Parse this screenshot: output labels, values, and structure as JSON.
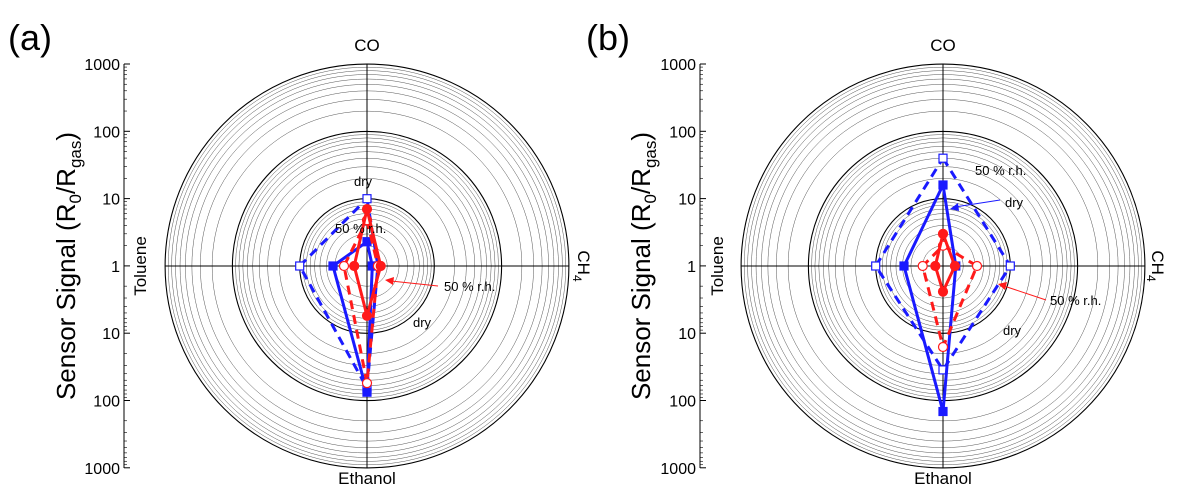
{
  "figure": {
    "colors": {
      "blue": "#1a1aff",
      "red": "#ff1a1a",
      "axis": "#000000",
      "grid": "#555555"
    }
  },
  "chart_data": [
    {
      "panel_label": "(a)",
      "type": "radar",
      "scale": "log",
      "rlim": [
        1,
        1000
      ],
      "radial_ticks": [
        "1000",
        "100",
        "10",
        "1",
        "10",
        "100",
        "1000"
      ],
      "axis_label": {
        "main": "Sensor Signal (R",
        "sub1": "0",
        "mid": "/R",
        "sub2": "gas",
        "end": ")"
      },
      "categories": [
        "CO",
        "CH4",
        "Ethanol",
        "Toluene"
      ],
      "category_labels": {
        "top": "CO",
        "right_main": "CH",
        "right_sub": "4",
        "bottom": "Ethanol",
        "left": "Toluene"
      },
      "series": [
        {
          "color": "blue",
          "style": "dashed",
          "marker": "open-square",
          "values": [
            10,
            1.45,
            65,
            10
          ]
        },
        {
          "color": "blue",
          "style": "solid",
          "marker": "filled-square",
          "values": [
            2.3,
            1.2,
            75,
            3.2
          ]
        },
        {
          "color": "red",
          "style": "dashed",
          "marker": "open-circle",
          "values": [
            4.8,
            1.45,
            55,
            2.2
          ]
        },
        {
          "color": "red",
          "style": "solid",
          "marker": "filled-circle",
          "values": [
            7,
            1.6,
            5.5,
            1.55
          ]
        }
      ],
      "annotations": [
        {
          "text": "dry",
          "color": "blue"
        },
        {
          "text": "50 % r.h.",
          "color": "blue"
        },
        {
          "text": "50 % r.h.",
          "color": "red"
        },
        {
          "text": "dry",
          "color": "red"
        }
      ]
    },
    {
      "panel_label": "(b)",
      "type": "radar",
      "scale": "log",
      "rlim": [
        1,
        1000
      ],
      "radial_ticks": [
        "1000",
        "100",
        "10",
        "1",
        "10",
        "100",
        "1000"
      ],
      "axis_label": {
        "main": "Sensor Signal (R",
        "sub1": "0",
        "mid": "/R",
        "sub2": "gas",
        "end": ")"
      },
      "categories": [
        "CO",
        "CH4",
        "Ethanol",
        "Toluene"
      ],
      "category_labels": {
        "top": "CO",
        "right_main": "CH",
        "right_sub": "4",
        "bottom": "Ethanol",
        "left": "Toluene"
      },
      "series": [
        {
          "color": "blue",
          "style": "dashed",
          "marker": "open-square",
          "values": [
            40,
            10,
            35,
            10
          ]
        },
        {
          "color": "blue",
          "style": "solid",
          "marker": "filled-square",
          "values": [
            16,
            1.55,
            145,
            3.8
          ]
        },
        {
          "color": "red",
          "style": "dashed",
          "marker": "open-circle",
          "values": [
            2,
            3.2,
            16,
            2
          ]
        },
        {
          "color": "red",
          "style": "solid",
          "marker": "filled-circle",
          "values": [
            3,
            1.5,
            2.4,
            1.3
          ]
        }
      ],
      "annotations": [
        {
          "text": "50 % r.h.",
          "color": "blue"
        },
        {
          "text": "dry",
          "color": "blue"
        },
        {
          "text": "50 % r.h.",
          "color": "red"
        },
        {
          "text": "dry",
          "color": "red"
        }
      ]
    }
  ]
}
